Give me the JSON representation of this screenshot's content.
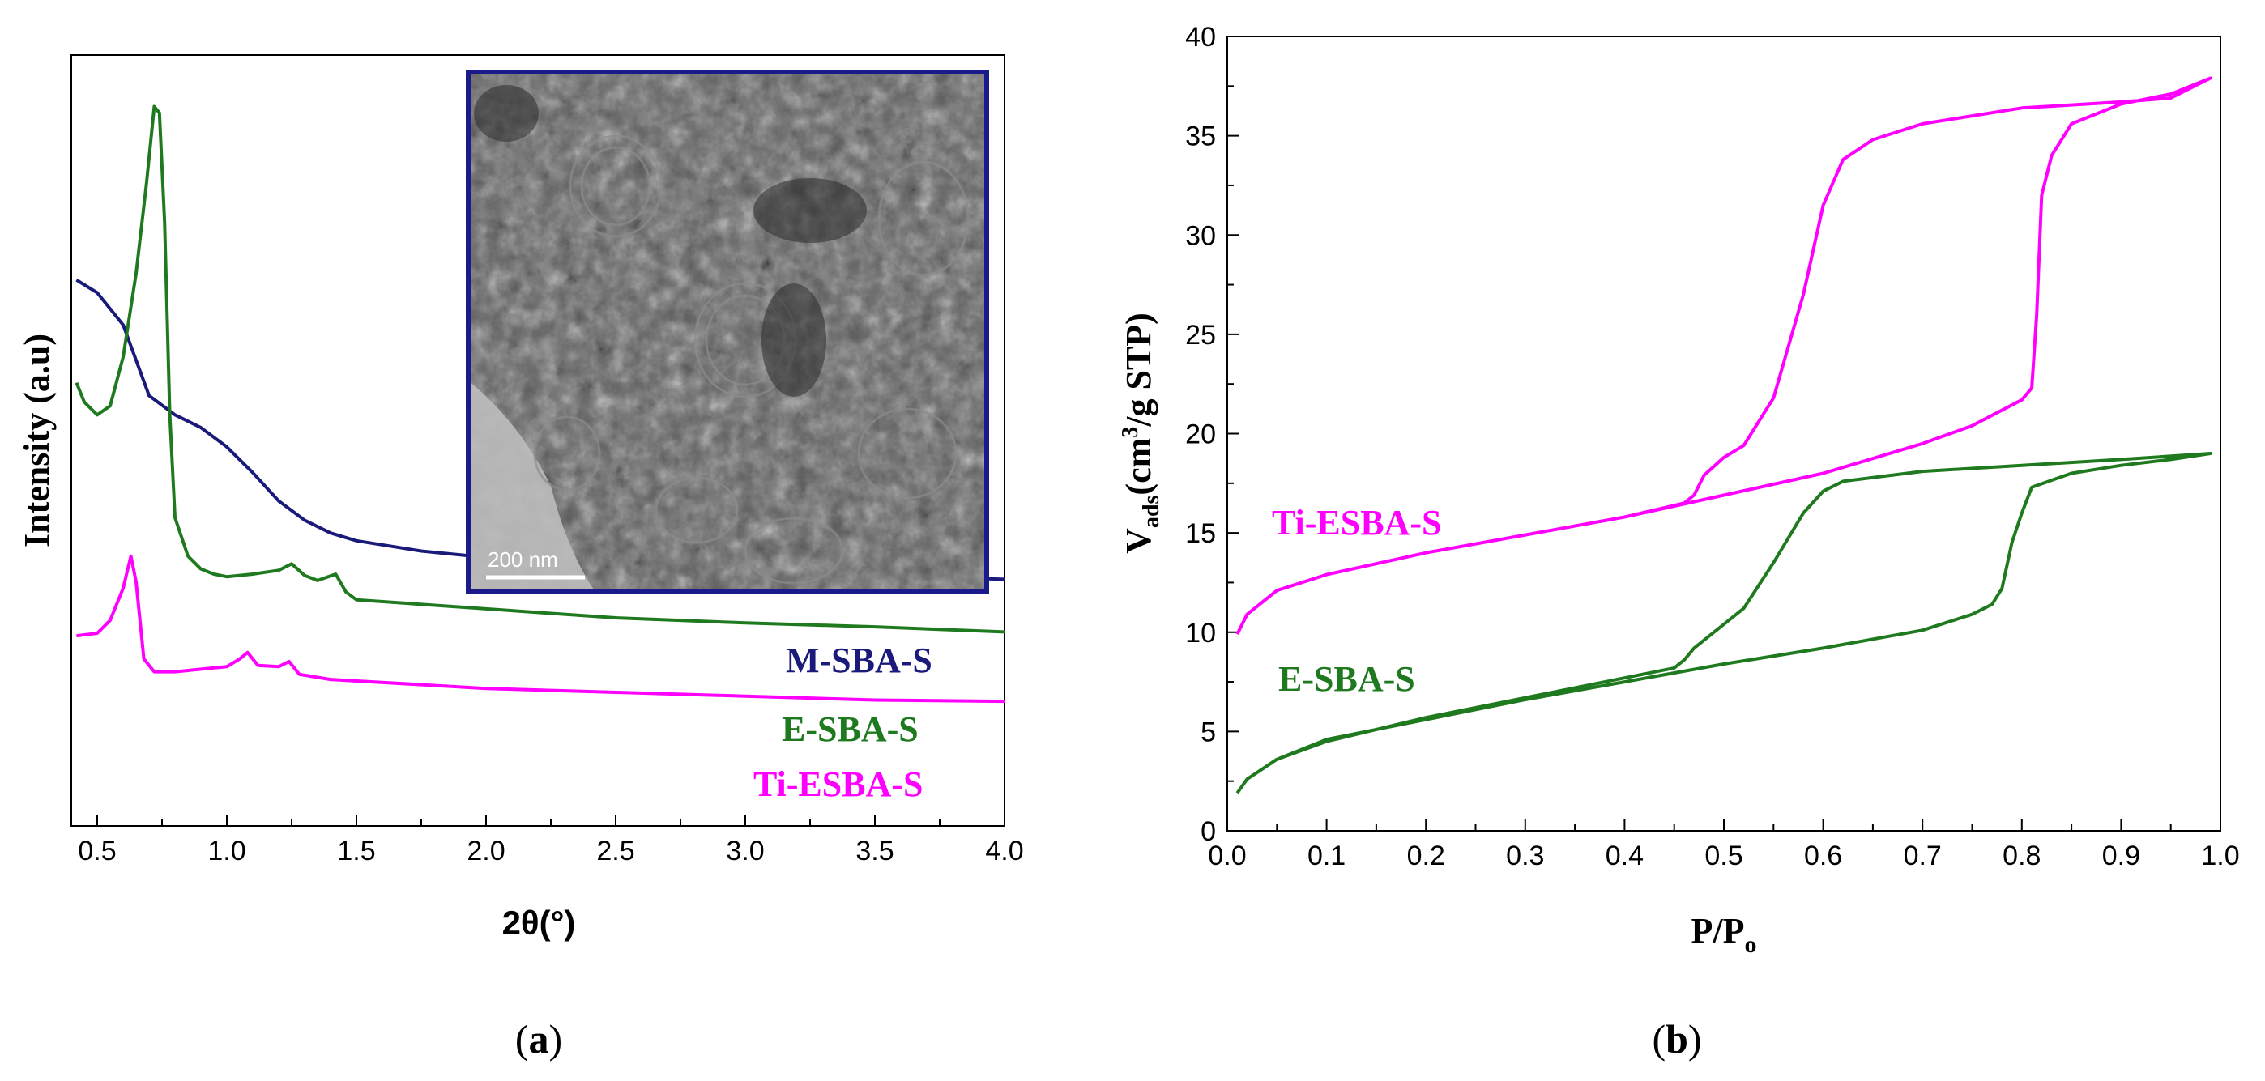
{
  "panels": {
    "a": {
      "label_prefix": "(",
      "label_letter": "a",
      "label_suffix": ")"
    },
    "b": {
      "label_prefix": "(",
      "label_letter": "b",
      "label_suffix": ")"
    }
  },
  "inset": {
    "scale_bar_label": "200 nm"
  },
  "colors": {
    "navy": "#1a1a7a",
    "green": "#1f7a1f",
    "magenta": "#ff00ff"
  },
  "chart_data": [
    {
      "type": "line",
      "xlabel": "2θ(°)",
      "ylabel": "Intensity (a.u)",
      "xlim": [
        0.4,
        4.0
      ],
      "ylim": [
        0,
        60
      ],
      "x_ticks": [
        "0.5",
        "1.0",
        "1.5",
        "2.0",
        "2.5",
        "3.0",
        "3.5",
        "4.0"
      ],
      "series": [
        {
          "name": "M-SBA-S",
          "color": "#1a1a7a",
          "points": [
            [
              0.42,
              42.5
            ],
            [
              0.5,
              41.5
            ],
            [
              0.6,
              39
            ],
            [
              0.7,
              33.5
            ],
            [
              0.8,
              32
            ],
            [
              0.9,
              31
            ],
            [
              1.0,
              29.5
            ],
            [
              1.1,
              27.5
            ],
            [
              1.2,
              25.3
            ],
            [
              1.3,
              23.8
            ],
            [
              1.4,
              22.8
            ],
            [
              1.5,
              22.2
            ],
            [
              1.75,
              21.4
            ],
            [
              2.0,
              20.9
            ],
            [
              2.5,
              20.3
            ],
            [
              3.0,
              19.8
            ],
            [
              3.5,
              19.5
            ],
            [
              4.0,
              19.2
            ]
          ]
        },
        {
          "name": "E-SBA-S",
          "color": "#1f7a1f",
          "points": [
            [
              0.42,
              34.5
            ],
            [
              0.45,
              33
            ],
            [
              0.5,
              32
            ],
            [
              0.55,
              32.7
            ],
            [
              0.6,
              36.5
            ],
            [
              0.65,
              43
            ],
            [
              0.69,
              50
            ],
            [
              0.72,
              56
            ],
            [
              0.74,
              55.5
            ],
            [
              0.76,
              47
            ],
            [
              0.78,
              32
            ],
            [
              0.8,
              24
            ],
            [
              0.85,
              21
            ],
            [
              0.9,
              20
            ],
            [
              0.95,
              19.6
            ],
            [
              1.0,
              19.4
            ],
            [
              1.1,
              19.6
            ],
            [
              1.2,
              19.9
            ],
            [
              1.25,
              20.4
            ],
            [
              1.3,
              19.5
            ],
            [
              1.35,
              19.1
            ],
            [
              1.42,
              19.6
            ],
            [
              1.46,
              18.2
            ],
            [
              1.5,
              17.6
            ],
            [
              2.0,
              16.9
            ],
            [
              2.5,
              16.2
            ],
            [
              3.0,
              15.8
            ],
            [
              3.5,
              15.5
            ],
            [
              4.0,
              15.1
            ]
          ]
        },
        {
          "name": "Ti-ESBA-S",
          "color": "#ff00ff",
          "points": [
            [
              0.42,
              14.8
            ],
            [
              0.5,
              15
            ],
            [
              0.55,
              16
            ],
            [
              0.6,
              18.5
            ],
            [
              0.63,
              21
            ],
            [
              0.65,
              19
            ],
            [
              0.68,
              13
            ],
            [
              0.72,
              12
            ],
            [
              0.8,
              12
            ],
            [
              0.9,
              12.2
            ],
            [
              1.0,
              12.4
            ],
            [
              1.05,
              13
            ],
            [
              1.08,
              13.5
            ],
            [
              1.12,
              12.5
            ],
            [
              1.2,
              12.4
            ],
            [
              1.24,
              12.8
            ],
            [
              1.28,
              11.8
            ],
            [
              1.4,
              11.4
            ],
            [
              2.0,
              10.7
            ],
            [
              2.5,
              10.4
            ],
            [
              3.0,
              10.1
            ],
            [
              3.5,
              9.8
            ],
            [
              4.0,
              9.7
            ]
          ]
        }
      ]
    },
    {
      "type": "line",
      "xlabel_main": "P/P",
      "xlabel_sub": "o",
      "ylabel_main": "V",
      "ylabel_sub": "ads",
      "ylabel_unit_pre": "(cm",
      "ylabel_unit_sup": "3",
      "ylabel_unit_post": "/g STP)",
      "xlim": [
        0.0,
        1.0
      ],
      "ylim": [
        0,
        40
      ],
      "x_ticks": [
        "0.0",
        "0.1",
        "0.2",
        "0.3",
        "0.4",
        "0.5",
        "0.6",
        "0.7",
        "0.8",
        "0.9",
        "1.0"
      ],
      "y_ticks": [
        "0",
        "5",
        "10",
        "15",
        "20",
        "25",
        "30",
        "35",
        "40"
      ],
      "series": [
        {
          "name": "Ti-ESBA-S",
          "color": "#ff00ff",
          "points": [
            [
              0.01,
              9.9
            ],
            [
              0.02,
              10.9
            ],
            [
              0.05,
              12.1
            ],
            [
              0.1,
              12.9
            ],
            [
              0.2,
              14.0
            ],
            [
              0.3,
              14.9
            ],
            [
              0.4,
              15.8
            ],
            [
              0.5,
              16.9
            ],
            [
              0.6,
              18.0
            ],
            [
              0.7,
              19.5
            ],
            [
              0.75,
              20.4
            ],
            [
              0.8,
              21.7
            ],
            [
              0.81,
              22.3
            ],
            [
              0.815,
              26
            ],
            [
              0.82,
              32
            ],
            [
              0.83,
              34
            ],
            [
              0.85,
              35.6
            ],
            [
              0.9,
              36.6
            ],
            [
              0.95,
              37.1
            ],
            [
              0.99,
              37.9
            ],
            [
              0.95,
              36.9
            ],
            [
              0.9,
              36.7
            ],
            [
              0.8,
              36.4
            ],
            [
              0.7,
              35.6
            ],
            [
              0.65,
              34.8
            ],
            [
              0.62,
              33.8
            ],
            [
              0.6,
              31.5
            ],
            [
              0.58,
              27
            ],
            [
              0.55,
              21.8
            ],
            [
              0.52,
              19.4
            ],
            [
              0.5,
              18.8
            ],
            [
              0.48,
              17.9
            ],
            [
              0.47,
              16.9
            ],
            [
              0.46,
              16.5
            ],
            [
              0.4,
              15.8
            ]
          ]
        },
        {
          "name": "E-SBA-S",
          "color": "#1f7a1f",
          "points": [
            [
              0.01,
              1.9
            ],
            [
              0.02,
              2.6
            ],
            [
              0.05,
              3.6
            ],
            [
              0.1,
              4.6
            ],
            [
              0.2,
              5.6
            ],
            [
              0.3,
              6.6
            ],
            [
              0.4,
              7.5
            ],
            [
              0.5,
              8.4
            ],
            [
              0.6,
              9.2
            ],
            [
              0.7,
              10.1
            ],
            [
              0.75,
              10.9
            ],
            [
              0.77,
              11.4
            ],
            [
              0.78,
              12.2
            ],
            [
              0.79,
              14.5
            ],
            [
              0.8,
              16
            ],
            [
              0.81,
              17.3
            ],
            [
              0.85,
              18.0
            ],
            [
              0.9,
              18.4
            ],
            [
              0.95,
              18.7
            ],
            [
              0.99,
              19.0
            ],
            [
              0.9,
              18.7
            ],
            [
              0.8,
              18.4
            ],
            [
              0.7,
              18.1
            ],
            [
              0.62,
              17.6
            ],
            [
              0.6,
              17.1
            ],
            [
              0.58,
              16
            ],
            [
              0.55,
              13.5
            ],
            [
              0.52,
              11.2
            ],
            [
              0.5,
              10.4
            ],
            [
              0.48,
              9.6
            ],
            [
              0.47,
              9.2
            ],
            [
              0.46,
              8.6
            ],
            [
              0.45,
              8.2
            ],
            [
              0.4,
              7.7
            ],
            [
              0.3,
              6.7
            ],
            [
              0.2,
              5.7
            ],
            [
              0.1,
              4.5
            ],
            [
              0.05,
              3.6
            ]
          ]
        }
      ]
    }
  ]
}
